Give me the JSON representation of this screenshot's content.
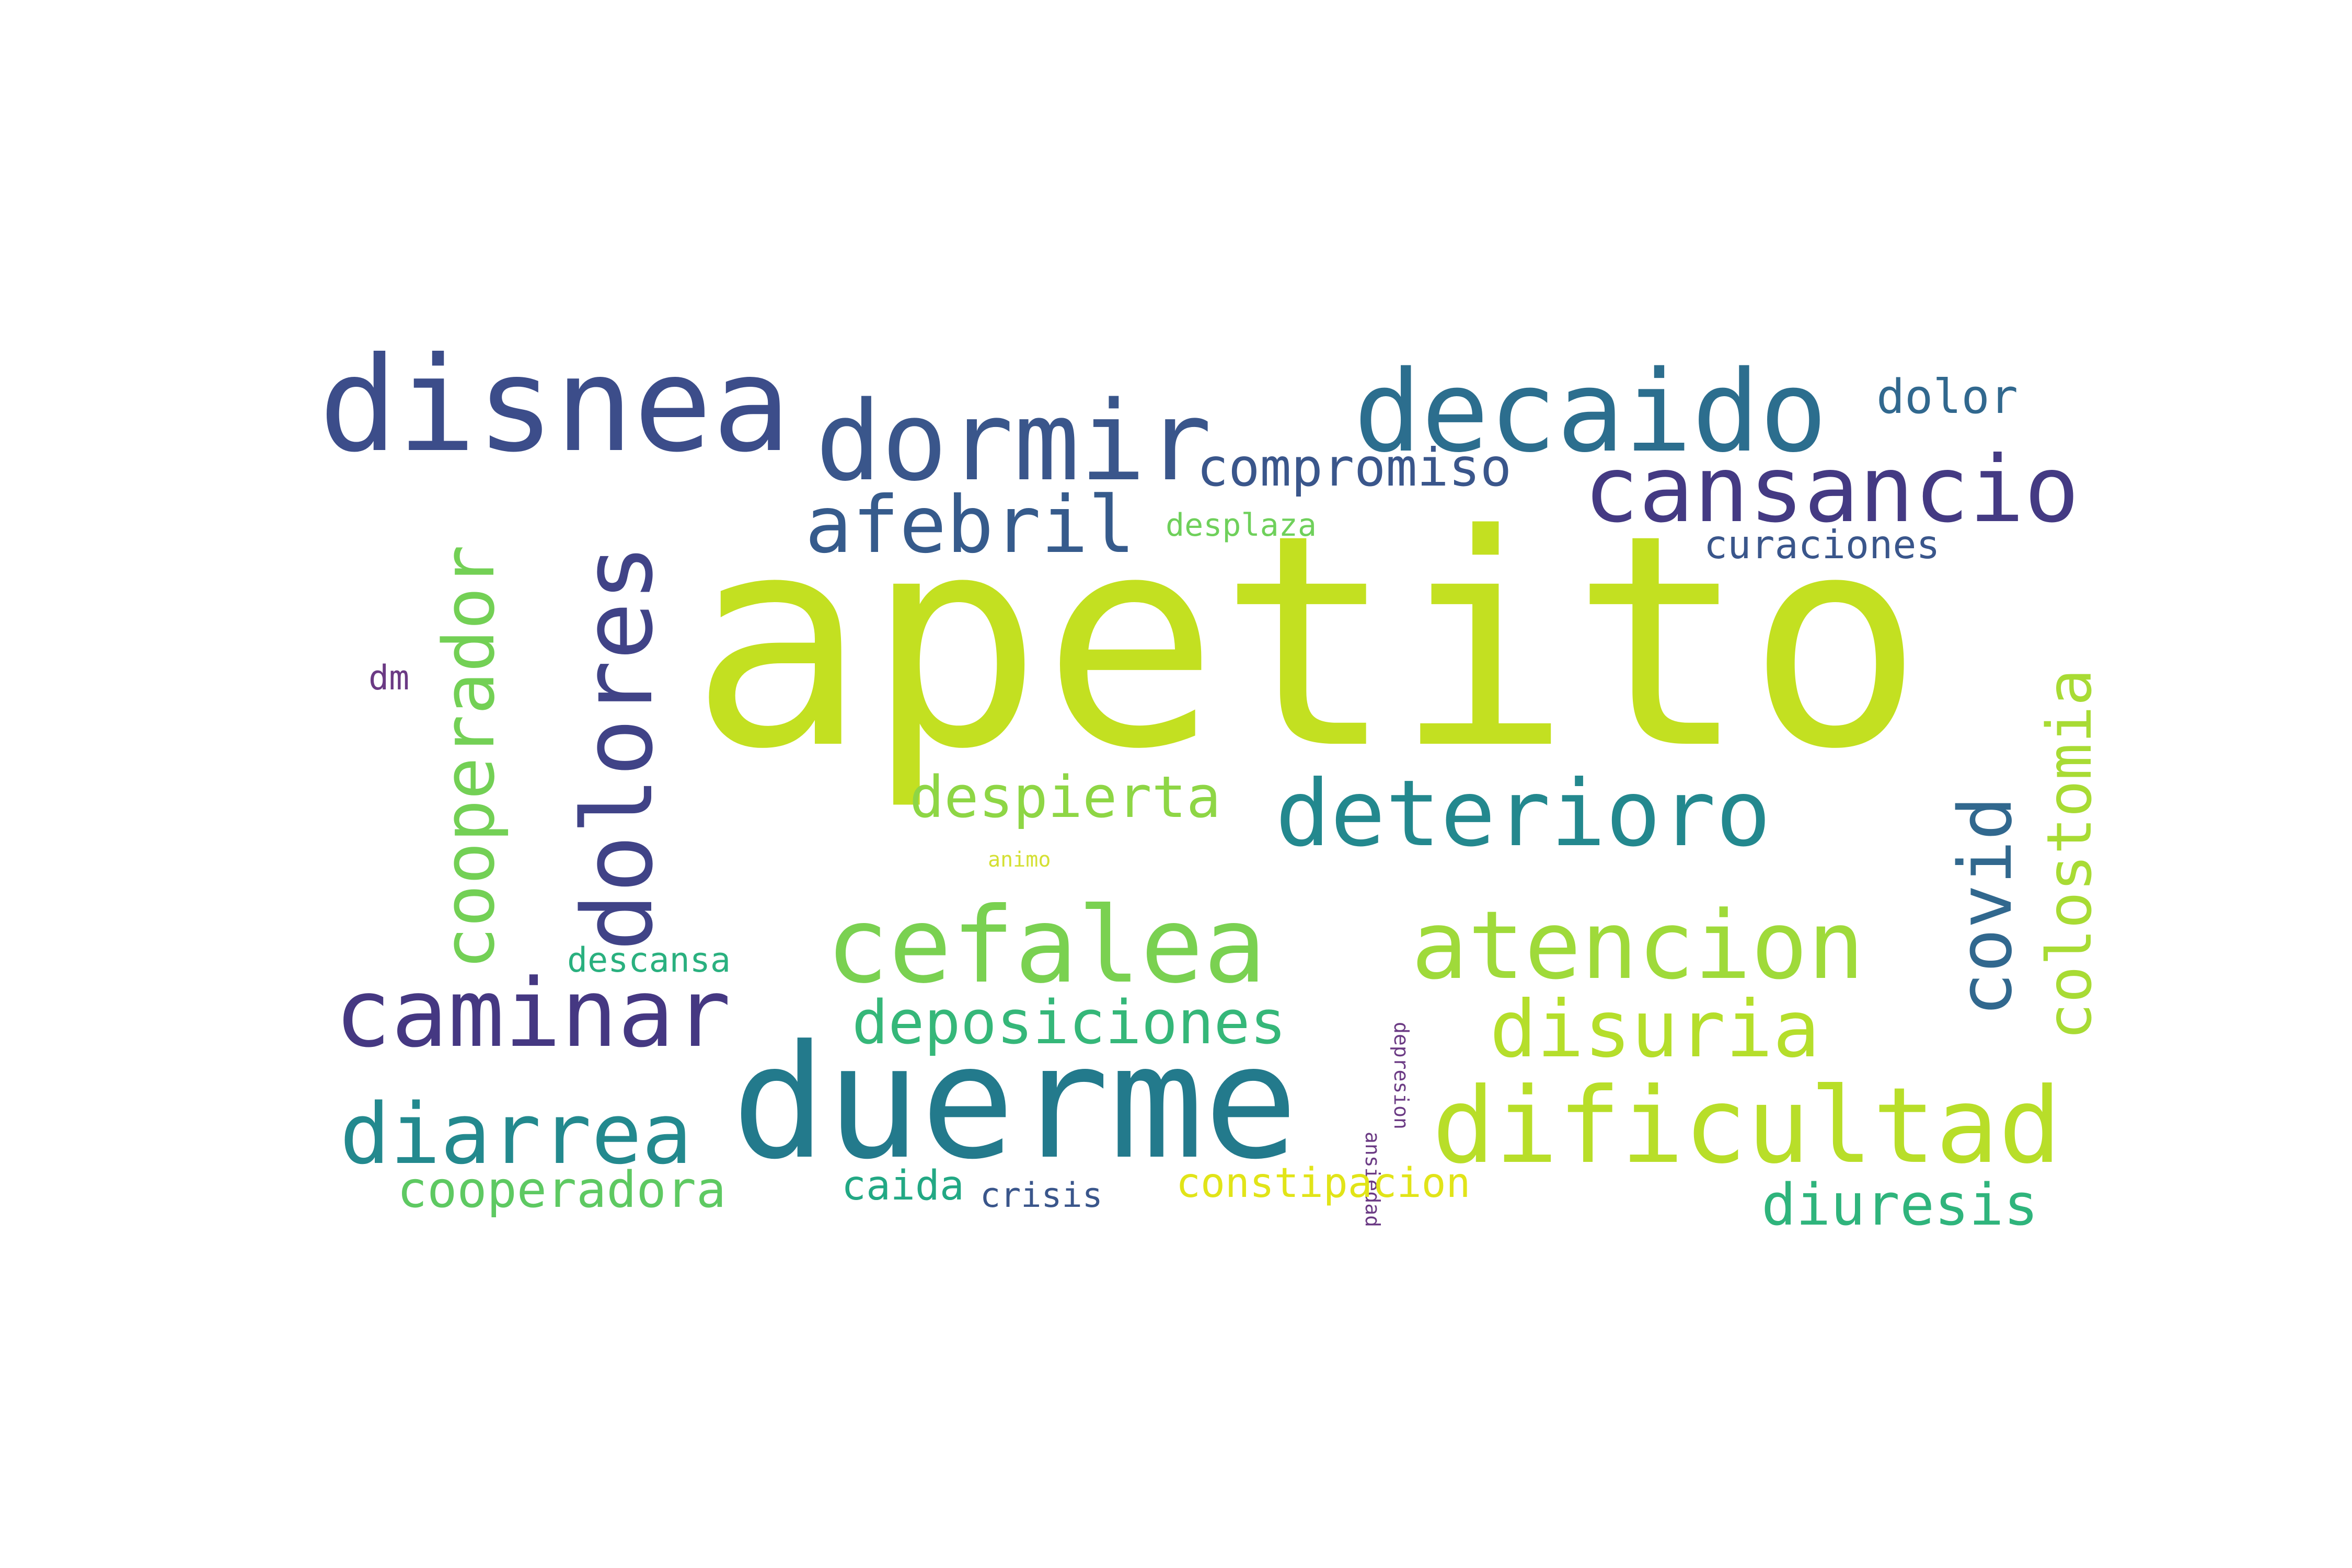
{
  "words": [
    {
      "text": "apetito",
      "color": "#c3e021",
      "rotate": false
    },
    {
      "text": "duerme",
      "color": "#237a8c",
      "rotate": false
    },
    {
      "text": "disnea",
      "color": "#3c4d8a",
      "rotate": false
    },
    {
      "text": "decaido",
      "color": "#2c6e8e",
      "rotate": false
    },
    {
      "text": "dormir",
      "color": "#3a568b",
      "rotate": false
    },
    {
      "text": "cansancio",
      "color": "#443a83",
      "rotate": false
    },
    {
      "text": "afebril",
      "color": "#365b8c",
      "rotate": false
    },
    {
      "text": "compromiso",
      "color": "#3a568b",
      "rotate": false
    },
    {
      "text": "dolor",
      "color": "#31688e",
      "rotate": false
    },
    {
      "text": "desplaza",
      "color": "#6fd05b",
      "rotate": false
    },
    {
      "text": "curaciones",
      "color": "#3a568b",
      "rotate": false
    },
    {
      "text": "cooperador",
      "color": "#73d055",
      "rotate": true
    },
    {
      "text": "dolores",
      "color": "#404387",
      "rotate": true
    },
    {
      "text": "colostomia",
      "color": "#a8db34",
      "rotate": true
    },
    {
      "text": "covid",
      "color": "#31688e",
      "rotate": true
    },
    {
      "text": "dm",
      "color": "#6b3a84",
      "rotate": false
    },
    {
      "text": "despierta",
      "color": "#8ed645",
      "rotate": false
    },
    {
      "text": "deterioro",
      "color": "#23888e",
      "rotate": false
    },
    {
      "text": "animo",
      "color": "#d4e033",
      "rotate": false
    },
    {
      "text": "cefalea",
      "color": "#7ad151",
      "rotate": false
    },
    {
      "text": "atencion",
      "color": "#9fda3a",
      "rotate": false
    },
    {
      "text": "descansa",
      "color": "#2ab07f",
      "rotate": false
    },
    {
      "text": "caminar",
      "color": "#453882",
      "rotate": false
    },
    {
      "text": "deposiciones",
      "color": "#35b779",
      "rotate": false
    },
    {
      "text": "disuria",
      "color": "#b5de2b",
      "rotate": false
    },
    {
      "text": "ansiedad",
      "color": "#6b3a84",
      "rotate": true
    },
    {
      "text": "depresion",
      "color": "#6b3a84",
      "rotate": true
    },
    {
      "text": "diarrea",
      "color": "#23898e",
      "rotate": false
    },
    {
      "text": "dificultad",
      "color": "#b8de29",
      "rotate": false
    },
    {
      "text": "cooperadora",
      "color": "#5ec962",
      "rotate": false
    },
    {
      "text": "caida",
      "color": "#22a884",
      "rotate": false
    },
    {
      "text": "crisis",
      "color": "#3a568b",
      "rotate": false
    },
    {
      "text": "constipacion",
      "color": "#e1e418",
      "rotate": false
    },
    {
      "text": "diuresis",
      "color": "#2fb47c",
      "rotate": false
    }
  ]
}
